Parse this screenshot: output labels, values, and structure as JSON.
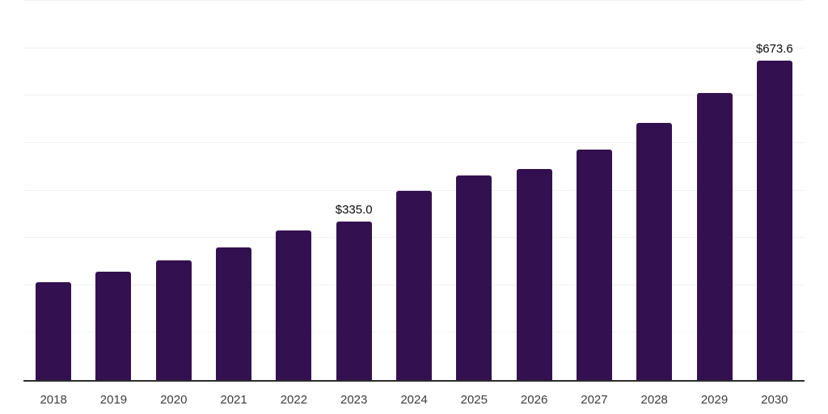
{
  "chart_data": {
    "type": "bar",
    "title": "",
    "xlabel": "",
    "ylabel": "",
    "categories": [
      "2018",
      "2019",
      "2020",
      "2021",
      "2022",
      "2023",
      "2024",
      "2025",
      "2026",
      "2027",
      "2028",
      "2029",
      "2030"
    ],
    "values": [
      207,
      229,
      252,
      280,
      315,
      335.0,
      399,
      432,
      445,
      487,
      542,
      606,
      673.6
    ],
    "value_labels": [
      "",
      "",
      "",
      "",
      "",
      "$335.0",
      "",
      "",
      "",
      "",
      "",
      "",
      "$673.6"
    ],
    "ylim": [
      0,
      800
    ],
    "grid_step": 100,
    "grid": true,
    "legend": false,
    "colors": {
      "bar": "#331150",
      "gridline": "#f1f1f3",
      "axis": "#2b2b2b",
      "tick_label": "#3d3d3d",
      "value_label": "#0a0a0a",
      "background": "#ffffff"
    }
  }
}
